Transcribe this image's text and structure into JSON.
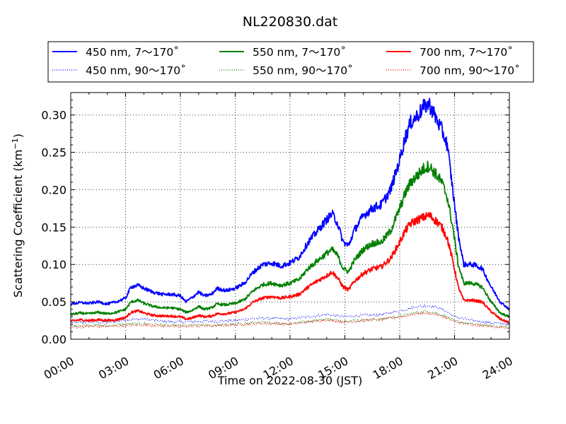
{
  "chart_data": {
    "type": "line",
    "title": "NL220830.dat",
    "xlabel": "Time on 2022-08-30 (JST)",
    "ylabel": "Scattering Coefficient (km",
    "ylabel_sup": "−1",
    "ylabel_close": ")",
    "xlim": [
      0,
      24
    ],
    "ylim": [
      0,
      0.33
    ],
    "x_ticks": [
      0,
      3,
      6,
      9,
      12,
      15,
      18,
      21,
      24
    ],
    "x_tick_labels": [
      "00:00",
      "03:00",
      "06:00",
      "09:00",
      "12:00",
      "15:00",
      "18:00",
      "21:00",
      "24:00"
    ],
    "y_ticks": [
      0.0,
      0.05,
      0.1,
      0.15,
      0.2,
      0.25,
      0.3
    ],
    "y_tick_labels": [
      "0.00",
      "0.05",
      "0.10",
      "0.15",
      "0.20",
      "0.25",
      "0.30"
    ],
    "grid": true,
    "legend_position": "top",
    "series": [
      {
        "name": "450 nm, 7～170˚",
        "color": "#0000ff",
        "style": "solid",
        "x": [
          0,
          0.5,
          1,
          1.5,
          2,
          2.5,
          3,
          3.3,
          3.7,
          4,
          4.5,
          5,
          5.5,
          6,
          6.3,
          6.6,
          7,
          7.3,
          7.7,
          8,
          8.5,
          9,
          9.5,
          10,
          10.5,
          11,
          11.5,
          12,
          12.5,
          13,
          13.5,
          14,
          14.3,
          14.6,
          14.9,
          15.2,
          15.5,
          16,
          16.5,
          17,
          17.5,
          18,
          18.3,
          18.6,
          19,
          19.3,
          19.6,
          20,
          20.3,
          20.6,
          20.9,
          21.2,
          21.5,
          22,
          22.5,
          23,
          23.5,
          24
        ],
        "y": [
          0.047,
          0.049,
          0.048,
          0.05,
          0.047,
          0.05,
          0.055,
          0.07,
          0.072,
          0.068,
          0.063,
          0.06,
          0.06,
          0.058,
          0.05,
          0.055,
          0.063,
          0.058,
          0.06,
          0.068,
          0.065,
          0.068,
          0.075,
          0.09,
          0.1,
          0.102,
          0.098,
          0.102,
          0.11,
          0.13,
          0.145,
          0.16,
          0.168,
          0.155,
          0.13,
          0.125,
          0.145,
          0.165,
          0.175,
          0.18,
          0.2,
          0.24,
          0.27,
          0.29,
          0.3,
          0.31,
          0.315,
          0.295,
          0.28,
          0.26,
          0.2,
          0.14,
          0.1,
          0.1,
          0.095,
          0.07,
          0.05,
          0.04
        ]
      },
      {
        "name": "450 nm, 90～170˚",
        "color": "#0000ff",
        "style": "dotted",
        "x": [
          0,
          1,
          2,
          3,
          4,
          5,
          6,
          7,
          8,
          9,
          10,
          11,
          12,
          13,
          14,
          15,
          16,
          17,
          18,
          19,
          19.5,
          20,
          20.5,
          21,
          22,
          23,
          24
        ],
        "y": [
          0.022,
          0.023,
          0.022,
          0.026,
          0.027,
          0.024,
          0.023,
          0.024,
          0.024,
          0.025,
          0.028,
          0.028,
          0.027,
          0.03,
          0.033,
          0.03,
          0.032,
          0.033,
          0.038,
          0.044,
          0.045,
          0.043,
          0.038,
          0.03,
          0.025,
          0.022,
          0.02
        ]
      },
      {
        "name": "550 nm, 7～170˚",
        "color": "#008000",
        "style": "solid",
        "x": [
          0,
          0.5,
          1,
          1.5,
          2,
          2.5,
          3,
          3.3,
          3.7,
          4,
          4.5,
          5,
          5.5,
          6,
          6.3,
          6.6,
          7,
          7.3,
          7.7,
          8,
          8.5,
          9,
          9.5,
          10,
          10.5,
          11,
          11.5,
          12,
          12.5,
          13,
          13.5,
          14,
          14.3,
          14.6,
          14.9,
          15.2,
          15.5,
          16,
          16.5,
          17,
          17.5,
          18,
          18.3,
          18.6,
          19,
          19.3,
          19.6,
          20,
          20.3,
          20.6,
          20.9,
          21.2,
          21.5,
          22,
          22.5,
          23,
          23.5,
          24
        ],
        "y": [
          0.033,
          0.035,
          0.034,
          0.036,
          0.034,
          0.036,
          0.04,
          0.05,
          0.052,
          0.048,
          0.044,
          0.042,
          0.042,
          0.04,
          0.036,
          0.038,
          0.044,
          0.04,
          0.042,
          0.047,
          0.046,
          0.048,
          0.053,
          0.065,
          0.073,
          0.075,
          0.072,
          0.075,
          0.08,
          0.095,
          0.105,
          0.115,
          0.12,
          0.112,
          0.095,
          0.09,
          0.105,
          0.12,
          0.128,
          0.13,
          0.145,
          0.175,
          0.195,
          0.21,
          0.22,
          0.228,
          0.232,
          0.22,
          0.21,
          0.19,
          0.15,
          0.1,
          0.075,
          0.075,
          0.07,
          0.05,
          0.035,
          0.03
        ]
      },
      {
        "name": "550 nm, 90～170˚",
        "color": "#008000",
        "style": "dotted",
        "x": [
          0,
          1,
          2,
          3,
          4,
          5,
          6,
          7,
          8,
          9,
          10,
          11,
          12,
          13,
          14,
          15,
          16,
          17,
          18,
          19,
          19.5,
          20,
          20.5,
          21,
          22,
          23,
          24
        ],
        "y": [
          0.018,
          0.019,
          0.018,
          0.02,
          0.021,
          0.019,
          0.018,
          0.019,
          0.019,
          0.02,
          0.022,
          0.022,
          0.021,
          0.024,
          0.027,
          0.024,
          0.026,
          0.027,
          0.031,
          0.036,
          0.037,
          0.035,
          0.031,
          0.024,
          0.02,
          0.018,
          0.016
        ]
      },
      {
        "name": "700 nm, 7～170˚",
        "color": "#ff0000",
        "style": "solid",
        "x": [
          0,
          0.5,
          1,
          1.5,
          2,
          2.5,
          3,
          3.3,
          3.7,
          4,
          4.5,
          5,
          5.5,
          6,
          6.3,
          6.6,
          7,
          7.3,
          7.7,
          8,
          8.5,
          9,
          9.5,
          10,
          10.5,
          11,
          11.5,
          12,
          12.5,
          13,
          13.5,
          14,
          14.3,
          14.6,
          14.9,
          15.2,
          15.5,
          16,
          16.5,
          17,
          17.5,
          18,
          18.3,
          18.6,
          19,
          19.3,
          19.6,
          20,
          20.3,
          20.6,
          20.9,
          21.2,
          21.5,
          22,
          22.5,
          23,
          23.5,
          24
        ],
        "y": [
          0.024,
          0.026,
          0.025,
          0.026,
          0.025,
          0.026,
          0.029,
          0.036,
          0.038,
          0.035,
          0.032,
          0.031,
          0.031,
          0.03,
          0.027,
          0.028,
          0.032,
          0.03,
          0.031,
          0.034,
          0.034,
          0.036,
          0.04,
          0.05,
          0.055,
          0.057,
          0.055,
          0.057,
          0.06,
          0.07,
          0.078,
          0.085,
          0.09,
          0.082,
          0.07,
          0.066,
          0.077,
          0.088,
          0.094,
          0.097,
          0.108,
          0.13,
          0.145,
          0.155,
          0.16,
          0.163,
          0.166,
          0.158,
          0.15,
          0.135,
          0.105,
          0.07,
          0.052,
          0.052,
          0.05,
          0.037,
          0.027,
          0.022
        ]
      },
      {
        "name": "700 nm, 90～170˚",
        "color": "#ff0000",
        "style": "dotted",
        "x": [
          0,
          1,
          2,
          3,
          4,
          5,
          6,
          7,
          8,
          9,
          10,
          11,
          12,
          13,
          14,
          15,
          16,
          17,
          18,
          19,
          19.5,
          20,
          20.5,
          21,
          22,
          23,
          24
        ],
        "y": [
          0.016,
          0.017,
          0.017,
          0.018,
          0.019,
          0.018,
          0.017,
          0.018,
          0.018,
          0.019,
          0.021,
          0.021,
          0.02,
          0.023,
          0.026,
          0.023,
          0.025,
          0.026,
          0.03,
          0.034,
          0.035,
          0.033,
          0.029,
          0.023,
          0.019,
          0.017,
          0.015
        ]
      }
    ]
  }
}
